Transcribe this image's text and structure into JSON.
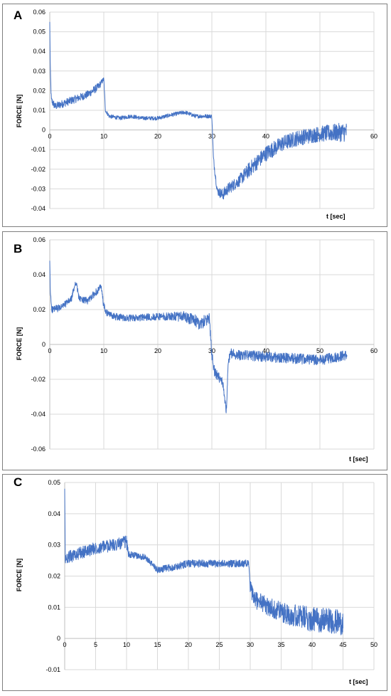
{
  "chart_data": [
    {
      "type": "line",
      "panel_label": "A",
      "xlabel": "t [sec]",
      "ylabel": "FORCE [N]",
      "xlim": [
        0,
        60
      ],
      "ylim": [
        -0.04,
        0.06
      ],
      "x_ticks": [
        0,
        10,
        20,
        30,
        40,
        50,
        60
      ],
      "y_ticks": [
        -0.04,
        -0.03,
        -0.02,
        -0.01,
        0,
        0.01,
        0.02,
        0.03,
        0.04,
        0.05,
        0.06
      ],
      "y_tick_labels": [
        "-0.04",
        "-0.03",
        "-0.02",
        "-0.01",
        "0",
        "0.01",
        "0.02",
        "0.03",
        "0.04",
        "0.05",
        "0.06"
      ],
      "grid": true,
      "color": "#4472C4",
      "series": [
        {
          "x": [
            0,
            0.1,
            0.3,
            1,
            3,
            5,
            7,
            9,
            10,
            10.3,
            11,
            13,
            15,
            17,
            20,
            23,
            25,
            27,
            30,
            30.3,
            31,
            32,
            33,
            35,
            37,
            40,
            43,
            46,
            50,
            55
          ],
          "y": [
            0.055,
            0.03,
            0.015,
            0.012,
            0.014,
            0.016,
            0.018,
            0.022,
            0.026,
            0.01,
            0.007,
            0.006,
            0.007,
            0.006,
            0.006,
            0.008,
            0.009,
            0.007,
            0.007,
            -0.015,
            -0.031,
            -0.033,
            -0.03,
            -0.026,
            -0.02,
            -0.012,
            -0.007,
            -0.004,
            -0.002,
            -0.001
          ],
          "noise": [
            0,
            0.002,
            0.002,
            0.002,
            0.002,
            0.002,
            0.002,
            0.002,
            0.001,
            0.001,
            0.001,
            0.001,
            0.001,
            0.001,
            0.001,
            0.001,
            0.001,
            0.001,
            0.001,
            0.002,
            0.002,
            0.003,
            0.003,
            0.003,
            0.004,
            0.004,
            0.004,
            0.004,
            0.004,
            0.005
          ]
        }
      ]
    },
    {
      "type": "line",
      "panel_label": "B",
      "xlabel": "t [sec]",
      "ylabel": "FORCE [N]",
      "xlim": [
        0,
        60
      ],
      "ylim": [
        -0.06,
        0.06
      ],
      "x_ticks": [
        0,
        10,
        20,
        30,
        40,
        50,
        60
      ],
      "y_ticks": [
        -0.06,
        -0.04,
        -0.02,
        0,
        0.02,
        0.04,
        0.06
      ],
      "y_tick_labels": [
        "-0.06",
        "-0.04",
        "-0.02",
        "0",
        "0.02",
        "0.04",
        "0.06"
      ],
      "grid": true,
      "color": "#4472C4",
      "series": [
        {
          "x": [
            0,
            0.1,
            0.4,
            2,
            4,
            4.8,
            5.5,
            7,
            9.5,
            10,
            10.5,
            12,
            15,
            20,
            25,
            28,
            29.5,
            30,
            30.5,
            32,
            32.7,
            33,
            33.5,
            35,
            40,
            45,
            50,
            55
          ],
          "y": [
            0.048,
            0.03,
            0.02,
            0.021,
            0.026,
            0.036,
            0.026,
            0.025,
            0.033,
            0.022,
            0.018,
            0.016,
            0.015,
            0.016,
            0.016,
            0.012,
            0.015,
            -0.005,
            -0.016,
            -0.022,
            -0.038,
            -0.01,
            -0.005,
            -0.006,
            -0.007,
            -0.008,
            -0.009,
            -0.006
          ],
          "noise": [
            0,
            0.002,
            0.002,
            0.002,
            0.002,
            0.002,
            0.002,
            0.002,
            0.002,
            0.002,
            0.002,
            0.002,
            0.002,
            0.002,
            0.003,
            0.004,
            0.003,
            0.004,
            0.003,
            0.003,
            0.003,
            0.002,
            0.003,
            0.003,
            0.003,
            0.003,
            0.003,
            0.003
          ]
        }
      ]
    },
    {
      "type": "line",
      "panel_label": "C",
      "xlabel": "t [sec]",
      "ylabel": "FORCE [N]",
      "xlim": [
        0,
        50
      ],
      "ylim": [
        -0.01,
        0.05
      ],
      "x_ticks": [
        0,
        5,
        10,
        15,
        20,
        25,
        30,
        35,
        40,
        45,
        50
      ],
      "y_ticks": [
        -0.01,
        0,
        0.01,
        0.02,
        0.03,
        0.04,
        0.05
      ],
      "y_tick_labels": [
        "-0.01",
        "0",
        "0.01",
        "0.02",
        "0.03",
        "0.04",
        "0.05"
      ],
      "grid": true,
      "color": "#4472C4",
      "series": [
        {
          "x": [
            0,
            0.1,
            0.4,
            2,
            5,
            8,
            10,
            10.3,
            13,
            15,
            18,
            20,
            25,
            29.8,
            30,
            30.5,
            33,
            36,
            40,
            42,
            45
          ],
          "y": [
            0.048,
            0.025,
            0.026,
            0.027,
            0.029,
            0.03,
            0.031,
            0.027,
            0.026,
            0.022,
            0.023,
            0.024,
            0.024,
            0.024,
            0.016,
            0.013,
            0.01,
            0.008,
            0.006,
            0.006,
            0.005
          ],
          "noise": [
            0,
            0.002,
            0.002,
            0.002,
            0.002,
            0.002,
            0.002,
            0.001,
            0.001,
            0.001,
            0.0012,
            0.0012,
            0.0012,
            0.0012,
            0.003,
            0.003,
            0.003,
            0.0035,
            0.004,
            0.004,
            0.004
          ]
        }
      ]
    }
  ]
}
